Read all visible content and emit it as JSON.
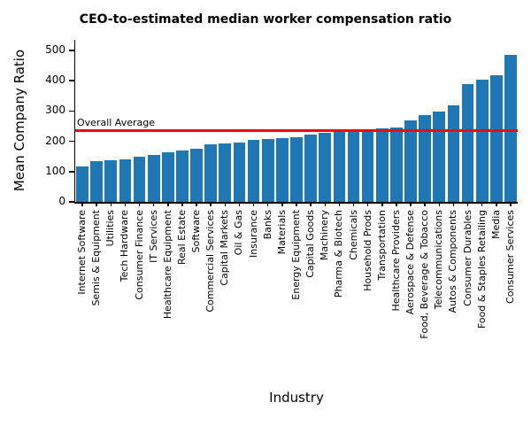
{
  "chart_data": {
    "type": "bar",
    "title": "CEO-to-estimated median worker compensation ratio",
    "xlabel": "Industry",
    "ylabel": "Mean Company Ratio",
    "ylim": [
      0,
      535
    ],
    "yticks": [
      0,
      100,
      200,
      300,
      400,
      500
    ],
    "grid": false,
    "legend_position": "none",
    "x_tick_rotation": 90,
    "bar_color": "#1f77b4",
    "categories": [
      "Internet Software",
      "Semis & Equipment",
      "Utilities",
      "Tech Hardware",
      "Consumer Finance",
      "IT Services",
      "Healthcare Equipment",
      "Real Estate",
      "Software",
      "Commercial Services",
      "Capital Markets",
      "Oil & Gas",
      "Insurance",
      "Banks",
      "Materials",
      "Energy Equipment",
      "Capital Goods",
      "Machinery",
      "Pharma & Biotech",
      "Chemicals",
      "Household Prods",
      "Transportation",
      "Healthcare Providers",
      "Aerospace & Defense",
      "Food, Beverage & Tobacco",
      "Telecommunications",
      "Autos & Components",
      "Consumer Durables",
      "Food & Staples Retailing",
      "Media",
      "Consumer Services"
    ],
    "values": [
      118,
      134,
      137,
      141,
      148,
      155,
      163,
      170,
      176,
      189,
      192,
      196,
      204,
      207,
      210,
      213,
      222,
      228,
      232,
      235,
      239,
      242,
      247,
      270,
      286,
      298,
      320,
      390,
      404,
      417,
      485
    ],
    "reference_line": {
      "label": "Overall Average",
      "value": 235,
      "color": "#ff0000"
    }
  }
}
